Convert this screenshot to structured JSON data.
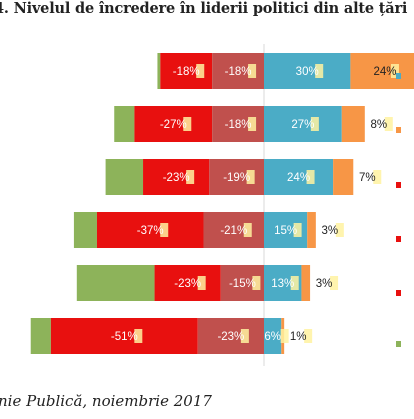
{
  "title": "4. Nivelul de încredere în liderii politici din alte țări",
  "source": "nie Publică, noiembrie 2017",
  "chart_data": {
    "type": "bar",
    "orientation": "horizontal",
    "stacked": "diverging",
    "rows": [
      {
        "segments": {
          "green": 1,
          "red": -18,
          "darkred": -18,
          "blue": 30,
          "orange": 24
        }
      },
      {
        "segments": {
          "green": 7,
          "red": -27,
          "darkred": -18,
          "blue": 27,
          "orange": 8
        }
      },
      {
        "segments": {
          "green": 13,
          "red": -23,
          "darkred": -19,
          "blue": 24,
          "orange": 7
        }
      },
      {
        "segments": {
          "green": 8,
          "red": -37,
          "darkred": -21,
          "blue": 15,
          "orange": 3
        }
      },
      {
        "segments": {
          "green": 27,
          "red": -23,
          "darkred": -15,
          "blue": 13,
          "orange": 3
        }
      },
      {
        "segments": {
          "green": 7,
          "red": -51,
          "darkred": -23,
          "blue": 6,
          "orange": 1
        }
      }
    ],
    "labels": [
      {
        "red": "-18%",
        "darkred": "-18%",
        "blue": "30%",
        "orange": "24%"
      },
      {
        "red": "-27%",
        "darkred": "-18%",
        "blue": "27%",
        "orange": "8%"
      },
      {
        "red": "-23%",
        "darkred": "-19%",
        "blue": "24%",
        "orange": "7%"
      },
      {
        "red": "-37%",
        "darkred": "-21%",
        "blue": "15%",
        "orange": "3%"
      },
      {
        "red": "-23%",
        "darkred": "-15%",
        "blue": "13%",
        "orange": "3%"
      },
      {
        "red": "-51%",
        "darkred": "-23%",
        "blue": "6%",
        "orange": "1%"
      }
    ],
    "colors": {
      "green": "#8db35a",
      "red": "#e8100f",
      "darkred": "#c0504d",
      "blue": "#4bacc6",
      "orange": "#f79646",
      "label_highlight": "#fff2a0",
      "axis": "#d9d9d9"
    },
    "legend_markers": [
      "blue",
      "orange",
      "red",
      "green"
    ],
    "legend_placement": "right"
  }
}
